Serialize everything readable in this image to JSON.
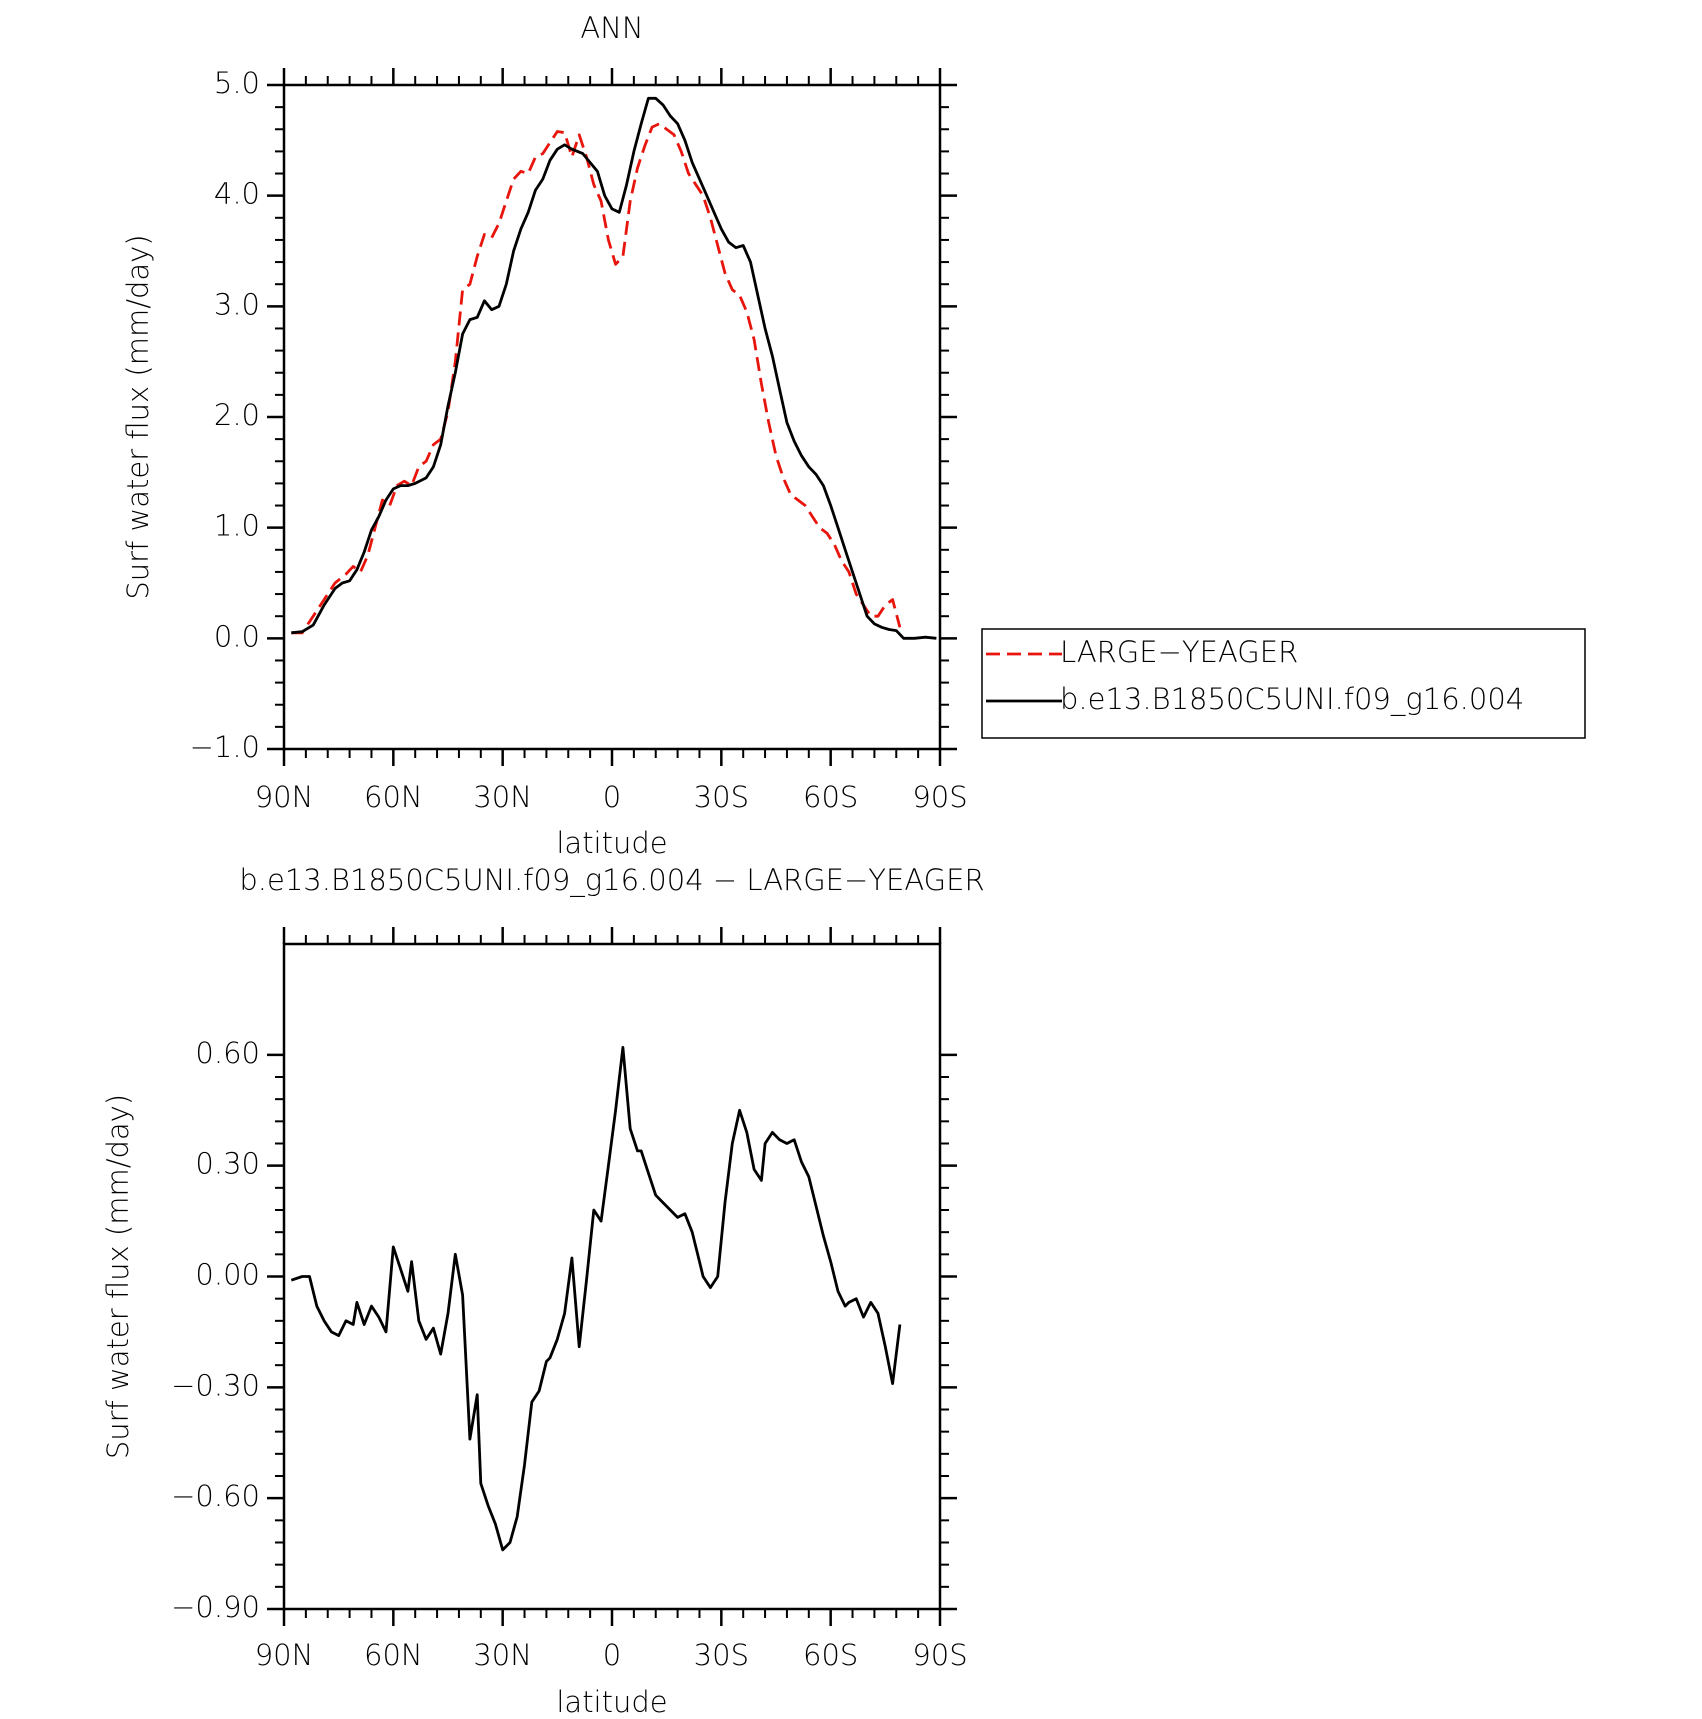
{
  "chart_data": [
    {
      "type": "line",
      "title": "ANN",
      "xlabel": "latitude",
      "ylabel": "Surf water flux (mm/day)",
      "xlim": [
        90,
        -90
      ],
      "xticks": [
        {
          "value": 90,
          "label": "90N"
        },
        {
          "value": 60,
          "label": "60N"
        },
        {
          "value": 30,
          "label": "30N"
        },
        0,
        {
          "value": -30,
          "label": "30S"
        },
        {
          "value": -60,
          "label": "60S"
        },
        {
          "value": -90,
          "label": "90S"
        }
      ],
      "ylim": [
        -1.0,
        5.0
      ],
      "yticks": [
        {
          "value": -1.0,
          "label": "−1.0"
        },
        {
          "value": 0.0,
          "label": "0.0"
        },
        {
          "value": 1.0,
          "label": "1.0"
        },
        {
          "value": 2.0,
          "label": "2.0"
        },
        {
          "value": 3.0,
          "label": "3.0"
        },
        {
          "value": 4.0,
          "label": "4.0"
        },
        {
          "value": 5.0,
          "label": "5.0"
        }
      ],
      "legend": "right",
      "series": [
        {
          "name": "LARGE−YEAGER",
          "color": "#e8150d",
          "dash": true,
          "x": [
            88,
            85,
            82,
            79,
            76,
            73,
            71,
            69,
            67,
            65,
            63,
            61,
            59,
            57,
            55,
            53,
            51,
            49,
            47,
            45,
            43,
            41,
            39,
            37,
            35,
            33,
            31,
            29,
            27,
            25,
            23,
            21,
            19,
            17,
            15,
            13,
            11,
            9,
            7,
            5,
            3,
            1,
            -1,
            -3,
            -5,
            -7,
            -9,
            -11,
            -13,
            -15,
            -17,
            -19,
            -21,
            -23,
            -25,
            -27,
            -29,
            -31,
            -33,
            -35,
            -37,
            -39,
            -41,
            -43,
            -45,
            -47,
            -49,
            -51,
            -53,
            -55,
            -57,
            -59,
            -61,
            -63,
            -65,
            -67,
            -69,
            -71,
            -73,
            -75,
            -77,
            -79
          ],
          "values": [
            0.05,
            0.05,
            0.2,
            0.35,
            0.5,
            0.58,
            0.65,
            0.6,
            0.75,
            1.0,
            1.25,
            1.2,
            1.38,
            1.42,
            1.38,
            1.55,
            1.6,
            1.75,
            1.8,
            2.05,
            2.5,
            3.15,
            3.2,
            3.45,
            3.65,
            3.62,
            3.75,
            3.95,
            4.15,
            4.22,
            4.2,
            4.35,
            4.38,
            4.48,
            4.58,
            4.57,
            4.35,
            4.55,
            4.35,
            4.1,
            3.95,
            3.6,
            3.38,
            3.45,
            3.95,
            4.25,
            4.45,
            4.62,
            4.65,
            4.6,
            4.55,
            4.4,
            4.2,
            4.1,
            4.0,
            3.8,
            3.55,
            3.3,
            3.15,
            3.1,
            2.95,
            2.7,
            2.3,
            1.95,
            1.65,
            1.45,
            1.3,
            1.25,
            1.2,
            1.1,
            1.0,
            0.95,
            0.85,
            0.7,
            0.6,
            0.4,
            0.3,
            0.2,
            0.2,
            0.3,
            0.35,
            0.1
          ]
        },
        {
          "name": "b.e13.B1850C5UNI.f09_g16.004",
          "color": "#000000",
          "dash": false,
          "x": [
            88,
            85,
            82,
            79,
            76,
            74,
            72,
            70,
            68,
            66,
            64,
            62,
            60,
            58,
            56,
            54,
            51,
            49,
            47,
            45,
            43,
            41,
            39,
            37,
            35,
            33,
            31,
            29,
            27,
            25,
            23,
            21,
            19,
            17,
            15,
            13,
            11,
            8,
            6,
            4,
            2,
            0,
            -2,
            -4,
            -6,
            -8,
            -10,
            -12,
            -14,
            -16,
            -18,
            -20,
            -22,
            -24,
            -26,
            -28,
            -30,
            -32,
            -34,
            -36,
            -38,
            -40,
            -42,
            -44,
            -46,
            -48,
            -50,
            -52,
            -54,
            -56,
            -58,
            -60,
            -62,
            -64,
            -66,
            -68,
            -70,
            -72,
            -74,
            -76,
            -78,
            -80,
            -83,
            -86,
            -89
          ],
          "values": [
            0.05,
            0.06,
            0.12,
            0.3,
            0.45,
            0.5,
            0.52,
            0.62,
            0.78,
            0.98,
            1.1,
            1.25,
            1.35,
            1.38,
            1.38,
            1.4,
            1.45,
            1.55,
            1.75,
            2.1,
            2.4,
            2.75,
            2.88,
            2.9,
            3.05,
            2.97,
            3.0,
            3.2,
            3.5,
            3.7,
            3.85,
            4.05,
            4.15,
            4.32,
            4.42,
            4.46,
            4.42,
            4.38,
            4.3,
            4.22,
            4.0,
            3.88,
            3.85,
            4.1,
            4.4,
            4.65,
            4.88,
            4.88,
            4.82,
            4.72,
            4.65,
            4.5,
            4.3,
            4.15,
            4.0,
            3.85,
            3.7,
            3.58,
            3.53,
            3.55,
            3.4,
            3.1,
            2.8,
            2.55,
            2.25,
            1.95,
            1.78,
            1.65,
            1.55,
            1.48,
            1.38,
            1.2,
            1.0,
            0.8,
            0.6,
            0.4,
            0.2,
            0.13,
            0.1,
            0.08,
            0.07,
            0.0,
            0.0,
            0.01,
            0.0
          ]
        }
      ]
    },
    {
      "type": "line",
      "title": "b.e13.B1850C5UNI.f09_g16.004 − LARGE−YEAGER",
      "xlabel": "latitude",
      "ylabel": "Surf water flux (mm/day)",
      "xlim": [
        90,
        -90
      ],
      "xticks": [
        {
          "value": 90,
          "label": "90N"
        },
        {
          "value": 60,
          "label": "60N"
        },
        {
          "value": 30,
          "label": "30N"
        },
        0,
        {
          "value": -30,
          "label": "30S"
        },
        {
          "value": -60,
          "label": "60S"
        },
        {
          "value": -90,
          "label": "90S"
        }
      ],
      "ylim": [
        -0.9,
        0.9
      ],
      "yticks": [
        {
          "value": -0.9,
          "label": "−0.90"
        },
        {
          "value": -0.6,
          "label": "−0.60"
        },
        {
          "value": -0.3,
          "label": "−0.30"
        },
        {
          "value": 0,
          "label": "0.00"
        },
        {
          "value": 0.3,
          "label": "0.30"
        },
        {
          "value": 0.6,
          "label": "0.60"
        }
      ],
      "series": [
        {
          "color": "#000000",
          "dash": false,
          "x": [
            88,
            85,
            83,
            81,
            79,
            77,
            75,
            73,
            71,
            70,
            68,
            66,
            64,
            62,
            60,
            58,
            56,
            55,
            53,
            51,
            49,
            47,
            45,
            43,
            41,
            39,
            37,
            36,
            34,
            32,
            30,
            28,
            26,
            24,
            22,
            20,
            18,
            17,
            15,
            13,
            11,
            9,
            7,
            5,
            3,
            1,
            -1,
            -3,
            -5,
            -7,
            -8,
            -10,
            -12,
            -14,
            -16,
            -18,
            -20,
            -22,
            -24,
            -25,
            -27,
            -29,
            -31,
            -33,
            -35,
            -37,
            -39,
            -41,
            -42,
            -44,
            -46,
            -48,
            -50,
            -52,
            -54,
            -56,
            -58,
            -60,
            -62,
            -64,
            -65,
            -67,
            -69,
            -71,
            -73,
            -75,
            -77,
            -79
          ],
          "values": [
            -0.01,
            0.0,
            0.0,
            -0.08,
            -0.12,
            -0.15,
            -0.16,
            -0.12,
            -0.13,
            -0.07,
            -0.13,
            -0.08,
            -0.11,
            -0.15,
            0.08,
            0.02,
            -0.04,
            0.04,
            -0.12,
            -0.17,
            -0.14,
            -0.21,
            -0.1,
            0.06,
            -0.05,
            -0.44,
            -0.32,
            -0.56,
            -0.62,
            -0.67,
            -0.74,
            -0.72,
            -0.65,
            -0.51,
            -0.34,
            -0.31,
            -0.23,
            -0.22,
            -0.17,
            -0.1,
            0.05,
            -0.19,
            -0.01,
            0.18,
            0.15,
            0.3,
            0.45,
            0.62,
            0.4,
            0.34,
            0.34,
            0.28,
            0.22,
            0.2,
            0.18,
            0.16,
            0.17,
            0.12,
            0.04,
            0.0,
            -0.03,
            0.0,
            0.2,
            0.36,
            0.45,
            0.39,
            0.29,
            0.26,
            0.36,
            0.39,
            0.37,
            0.36,
            0.37,
            0.31,
            0.27,
            0.19,
            0.11,
            0.04,
            -0.04,
            -0.08,
            -0.07,
            -0.06,
            -0.11,
            -0.07,
            -0.1,
            -0.19,
            -0.29,
            -0.13
          ]
        }
      ]
    }
  ]
}
